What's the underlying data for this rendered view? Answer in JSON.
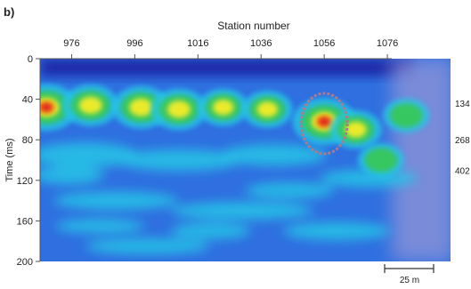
{
  "panel_label": "b)",
  "chart_data": {
    "type": "heatmap",
    "title": "",
    "xlabel": "Station number",
    "ylabel": "Time (ms)",
    "x_ticks": [
      "976",
      "996",
      "1016",
      "1036",
      "1056",
      "1076"
    ],
    "y_ticks": [
      "0",
      "40",
      "80",
      "120",
      "160",
      "200"
    ],
    "xlim": [
      966,
      1096
    ],
    "ylim": [
      0,
      200
    ],
    "right_labels": [
      "134",
      "268",
      "402"
    ],
    "right_label_times_ms": [
      44,
      80,
      110
    ],
    "scale_bar_label": "25 m",
    "colormap": [
      "#1a1f9e",
      "#2f6fe0",
      "#27c6e6",
      "#39c85a",
      "#eaea2a",
      "#f08a1f",
      "#e3201b"
    ],
    "highlight": {
      "shape": "ellipse",
      "color": "#b07a8a",
      "station": 1056,
      "time_ms": 64
    },
    "anomalies": [
      {
        "station": 968,
        "time_ms": 48,
        "amplitude": 1.0
      },
      {
        "station": 982,
        "time_ms": 46,
        "amplitude": 0.75
      },
      {
        "station": 998,
        "time_ms": 48,
        "amplitude": 0.8
      },
      {
        "station": 1010,
        "time_ms": 50,
        "amplitude": 0.75
      },
      {
        "station": 1024,
        "time_ms": 48,
        "amplitude": 0.55
      },
      {
        "station": 1038,
        "time_ms": 50,
        "amplitude": 0.55
      },
      {
        "station": 1056,
        "time_ms": 62,
        "amplitude": 1.0
      },
      {
        "station": 1066,
        "time_ms": 70,
        "amplitude": 0.6
      },
      {
        "station": 1074,
        "time_ms": 100,
        "amplitude": 0.4
      },
      {
        "station": 1082,
        "time_ms": 56,
        "amplitude": 0.4
      }
    ]
  }
}
